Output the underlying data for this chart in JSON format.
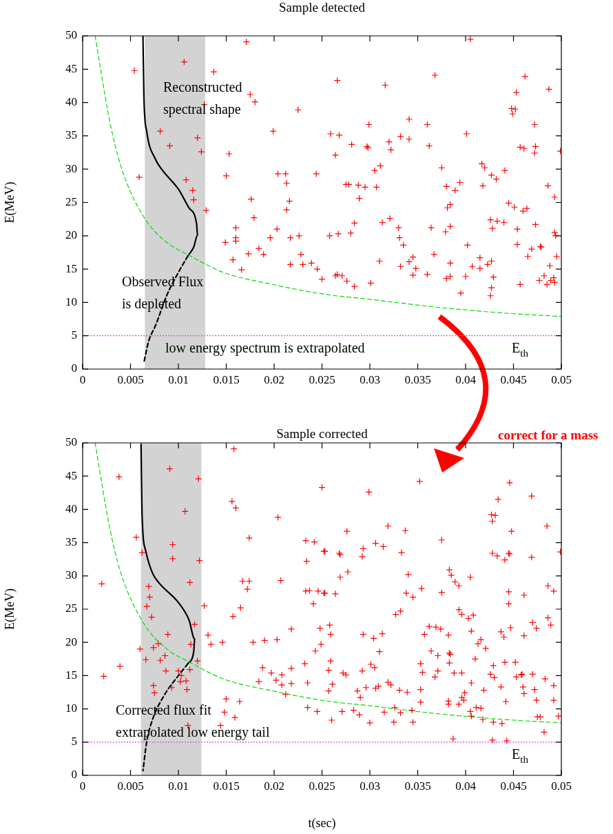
{
  "chart_data": [
    {
      "type": "scatter",
      "title": "Sample detected",
      "ylabel": "E(MeV)",
      "xlim": [
        0,
        0.05
      ],
      "ylim": [
        0,
        50
      ],
      "xticks": [
        0,
        0.005,
        0.01,
        0.015,
        0.02,
        0.025,
        0.03,
        0.035,
        0.04,
        0.045,
        0.05
      ],
      "yticks": [
        0,
        5,
        10,
        15,
        20,
        25,
        30,
        35,
        40,
        45,
        50
      ],
      "marker": "cross",
      "bands": [
        {
          "axis": "x",
          "from": 0.0065,
          "to": 0.0128,
          "color": "#d3d3d3"
        }
      ],
      "ref_lines": [
        {
          "axis": "y",
          "value": 5,
          "label": "E$_{th}$",
          "color": "#dd44dd",
          "line_style": "dotted"
        }
      ],
      "annotations": [
        "Reconstructed\nspectral shape",
        "Observed Flux\nis depleted",
        "low energy spectrum is extrapolated"
      ],
      "series": [
        {
          "type": "scatter",
          "color": "#ff0000",
          "x": [
            0.0171,
            0.0054,
            0.0106,
            0.0137,
            0.0175,
            0.018,
            0.0127,
            0.0225,
            0.0081,
            0.012,
            0.0091,
            0.0124,
            0.0153,
            0.0199,
            0.0059,
            0.015,
            0.0108,
            0.0204,
            0.0212,
            0.0244,
            0.0213,
            0.0115,
            0.0116,
            0.0129,
            0.0176,
            0.0216,
            0.0213,
            0.0179,
            0.016,
            0.0203,
            0.016,
            0.016,
            0.0149,
            0.0196,
            0.0217,
            0.0226,
            0.0184,
            0.0189,
            0.0173,
            0.0228,
            0.0157,
            0.0166,
            0.0217,
            0.023,
            0.0239,
            0.0245,
            0.025,
            0.0405,
            0.0266,
            0.0316,
            0.0368,
            0.0462,
            0.0453,
            0.0487,
            0.0448,
            0.0452,
            0.0449,
            0.0341,
            0.0299,
            0.036,
            0.0472,
            0.0259,
            0.0268,
            0.0401,
            0.0281,
            0.0297,
            0.0298,
            0.032,
            0.0322,
            0.0332,
            0.0341,
            0.0362,
            0.0457,
            0.0461,
            0.0473,
            0.0472,
            0.0499,
            0.0264,
            0.0305,
            0.0311,
            0.0375,
            0.0417,
            0.042,
            0.0427,
            0.0432,
            0.0441,
            0.0275,
            0.0278,
            0.0288,
            0.0295,
            0.0307,
            0.0289,
            0.038,
            0.0389,
            0.0394,
            0.0418,
            0.0486,
            0.0493,
            0.0381,
            0.0384,
            0.0445,
            0.0451,
            0.046,
            0.0464,
            0.0284,
            0.0313,
            0.0321,
            0.0258,
            0.0267,
            0.028,
            0.033,
            0.0331,
            0.0335,
            0.0364,
            0.0379,
            0.0384,
            0.0426,
            0.0433,
            0.044,
            0.0428,
            0.0454,
            0.0473,
            0.0493,
            0.0494,
            0.0402,
            0.0454,
            0.0469,
            0.0478,
            0.0479,
            0.0465,
            0.0495,
            0.031,
            0.0332,
            0.0341,
            0.0345,
            0.0348,
            0.0367,
            0.0384,
            0.0407,
            0.0415,
            0.0415,
            0.0423,
            0.0427,
            0.0488,
            0.0264,
            0.0266,
            0.0271,
            0.0276,
            0.0284,
            0.0301,
            0.0345,
            0.036,
            0.038,
            0.0384,
            0.04,
            0.0395,
            0.0429,
            0.0427,
            0.0426,
            0.0457,
            0.0477,
            0.0482,
            0.0485,
            0.0489,
            0.0492,
            0.0493
          ],
          "values": [
            49.1,
            44.8,
            46.1,
            44.6,
            41.2,
            40.1,
            39.7,
            38.9,
            35.7,
            34.7,
            33.5,
            32.6,
            32.3,
            35.7,
            28.8,
            29.0,
            28.4,
            29.3,
            29.3,
            29.3,
            27.9,
            26.8,
            25.4,
            23.8,
            25.5,
            25.2,
            23.9,
            22.7,
            21.2,
            21.0,
            19.7,
            19.2,
            19.0,
            19.7,
            19.7,
            20.0,
            18.1,
            17.2,
            17.3,
            17.2,
            16.4,
            14.9,
            15.7,
            15.7,
            15.9,
            15.0,
            13.5,
            49.5,
            43.3,
            42.6,
            44.1,
            43.9,
            41.5,
            42.0,
            39.1,
            39.0,
            38.3,
            37.5,
            36.7,
            36.7,
            36.7,
            35.3,
            35.1,
            35.3,
            33.7,
            33.4,
            33.2,
            34.1,
            32.9,
            34.9,
            34.5,
            33.5,
            33.3,
            33.1,
            33.4,
            32.4,
            32.7,
            32.1,
            29.8,
            30.5,
            30.2,
            30.8,
            30.2,
            29.1,
            28.5,
            29.8,
            27.7,
            27.7,
            27.6,
            27.3,
            27.3,
            25.6,
            27.4,
            26.8,
            28.0,
            27.5,
            27.5,
            25.8,
            24.2,
            24.7,
            24.9,
            24.3,
            23.7,
            24.1,
            21.9,
            22.0,
            22.6,
            20.0,
            20.3,
            20.4,
            21.2,
            19.7,
            18.6,
            21.2,
            20.6,
            21.4,
            22.4,
            22.2,
            22.0,
            21.1,
            21.0,
            21.7,
            20.5,
            20.0,
            18.6,
            18.7,
            18.0,
            18.4,
            18.3,
            16.9,
            16.9,
            16.2,
            15.4,
            16.1,
            16.8,
            15.1,
            17.2,
            15.9,
            15.4,
            16.7,
            15.1,
            15.7,
            16.2,
            15.5,
            14.0,
            14.2,
            14.0,
            13.2,
            12.4,
            12.9,
            14.1,
            14.2,
            13.6,
            13.9,
            13.9,
            11.4,
            13.8,
            12.2,
            11.0,
            12.7,
            13.3,
            14.0,
            12.7,
            13.3,
            13.7,
            13.0
          ]
        },
        {
          "type": "line",
          "color": "#00dd00",
          "line_style": "dashed",
          "marker": "none",
          "x": [
            0.0013,
            0.0028,
            0.004,
            0.0064,
            0.0088,
            0.0112,
            0.0147,
            0.0195,
            0.0254,
            0.0298,
            0.0369,
            0.0441,
            0.0499
          ],
          "values": [
            50,
            37.4,
            30.4,
            22.8,
            19.0,
            17.0,
            14.5,
            12.8,
            11.2,
            10.5,
            9.3,
            8.4,
            7.9
          ]
        },
        {
          "type": "line",
          "color": "#000000",
          "line_style": "solid",
          "marker": "none",
          "x": [
            0.0063,
            0.0064,
            0.0067,
            0.0076,
            0.0083,
            0.01,
            0.0111,
            0.0119,
            0.012,
            0.0116,
            0.011
          ],
          "values": [
            50,
            40.8,
            35.6,
            31.5,
            29.9,
            27.0,
            24.2,
            21.8,
            20.1,
            18.3,
            17.0
          ]
        },
        {
          "type": "line",
          "color": "#000000",
          "line_style": "dashed",
          "marker": "none",
          "x": [
            0.011,
            0.01,
            0.0088,
            0.0076,
            0.0069,
            0.0064
          ],
          "values": [
            17.0,
            14.5,
            11.1,
            6.5,
            4.2,
            1.0
          ]
        }
      ]
    },
    {
      "type": "scatter",
      "title": "Sample corrected",
      "xlabel": "t(sec)",
      "ylabel": "E(MeV)",
      "xlim": [
        0,
        0.05
      ],
      "ylim": [
        0,
        50
      ],
      "xticks": [
        0,
        0.005,
        0.01,
        0.015,
        0.02,
        0.025,
        0.03,
        0.035,
        0.04,
        0.045,
        0.05
      ],
      "yticks": [
        0,
        5,
        10,
        15,
        20,
        25,
        30,
        35,
        40,
        45,
        50
      ],
      "marker": "cross",
      "bands": [
        {
          "axis": "x",
          "from": 0.0061,
          "to": 0.0124,
          "color": "#d3d3d3"
        }
      ],
      "ref_lines": [
        {
          "axis": "y",
          "value": 5,
          "label": "E$_{th}$",
          "color": "#dd44dd",
          "line_style": "dotted"
        }
      ],
      "annotations": [
        "Corrected flux fit\nextrapolated low energy tail",
        "correct for a mass"
      ],
      "series": [
        {
          "type": "scatter",
          "color": "#ff0000",
          "x": [
            0.0158,
            0.0038,
            0.0091,
            0.0121,
            0.025,
            0.0156,
            0.016,
            0.0107,
            0.0204,
            0.0056,
            0.0094,
            0.0062,
            0.0094,
            0.0122,
            0.0174,
            0.0233,
            0.0242,
            0.0252,
            0.0234,
            0.002,
            0.0112,
            0.0069,
            0.0167,
            0.0174,
            0.0172,
            0.0207,
            0.0233,
            0.0237,
            0.0246,
            0.0252,
            0.007,
            0.0067,
            0.0127,
            0.0165,
            0.0072,
            0.0157,
            0.0241,
            0.0117,
            0.0218,
            0.0248,
            0.0089,
            0.0131,
            0.0134,
            0.0146,
            0.0178,
            0.019,
            0.0203,
            0.0113,
            0.0079,
            0.0074,
            0.006,
            0.0249,
            0.0243,
            0.0086,
            0.0066,
            0.0081,
            0.012,
            0.0039,
            0.0022,
            0.0087,
            0.01,
            0.0112,
            0.0103,
            0.0102,
            0.0108,
            0.0109,
            0.0074,
            0.0075,
            0.0093,
            0.0232,
            0.0218,
            0.0188,
            0.0197,
            0.0208,
            0.0202,
            0.0208,
            0.0184,
            0.0218,
            0.0235,
            0.0212,
            0.015,
            0.0164,
            0.0148,
            0.0159,
            0.0235,
            0.0245,
            0.011,
            0.0144,
            0.0393,
            0.0352,
            0.0299,
            0.0446,
            0.0469,
            0.0434,
            0.0427,
            0.0431,
            0.0428,
            0.0319,
            0.0337,
            0.0276,
            0.0448,
            0.0485,
            0.0375,
            0.0253,
            0.0268,
            0.0269,
            0.0293,
            0.0292,
            0.0306,
            0.0314,
            0.0333,
            0.0428,
            0.0433,
            0.0445,
            0.0446,
            0.0441,
            0.0469,
            0.0499,
            0.0269,
            0.0277,
            0.034,
            0.0383,
            0.0385,
            0.0389,
            0.0393,
            0.0405,
            0.0253,
            0.0264,
            0.0338,
            0.0345,
            0.0354,
            0.0375,
            0.0445,
            0.0445,
            0.0461,
            0.0486,
            0.0492,
            0.0327,
            0.0332,
            0.0393,
            0.0396,
            0.0403,
            0.0408,
            0.0258,
            0.0259,
            0.0293,
            0.0304,
            0.0313,
            0.0357,
            0.0362,
            0.0369,
            0.0374,
            0.0382,
            0.0406,
            0.0437,
            0.044,
            0.0447,
            0.0461,
            0.047,
            0.0474,
            0.0486,
            0.0489,
            0.0413,
            0.0416,
            0.0421,
            0.031,
            0.0364,
            0.0371,
            0.0383,
            0.0384,
            0.041,
            0.0259,
            0.0257,
            0.0301,
            0.0305,
            0.0353,
            0.0355,
            0.0371,
            0.0383,
            0.0388,
            0.0396,
            0.0429,
            0.0441,
            0.0452,
            0.0272,
            0.0275,
            0.0292,
            0.0368,
            0.0426,
            0.043,
            0.0453,
            0.0458,
            0.0459,
            0.047,
            0.0483,
            0.0261,
            0.0257,
            0.0287,
            0.029,
            0.0296,
            0.0306,
            0.0309,
            0.0319,
            0.0322,
            0.0331,
            0.0339,
            0.0353,
            0.0353,
            0.0382,
            0.0382,
            0.0393,
            0.0396,
            0.0398,
            0.0399,
            0.0406,
            0.0419,
            0.0437,
            0.0442,
            0.046,
            0.0461,
            0.0472,
            0.0474,
            0.0492,
            0.0492,
            0.0271,
            0.0283,
            0.0289,
            0.026,
            0.03,
            0.0315,
            0.0326,
            0.0332,
            0.0344,
            0.0325,
            0.0345,
            0.0405,
            0.0406,
            0.0411,
            0.0416,
            0.0418,
            0.0429,
            0.0438,
            0.0475,
            0.0478,
            0.0497,
            0.0482,
            0.0387,
            0.0428,
            0.0443
          ],
          "values": [
            49.1,
            44.9,
            46.1,
            44.6,
            43.3,
            41.2,
            40.2,
            39.7,
            38.8,
            35.8,
            34.7,
            33.5,
            32.6,
            32.3,
            35.7,
            35.3,
            35.1,
            33.7,
            32.2,
            28.8,
            29.0,
            28.4,
            29.2,
            29.2,
            28.0,
            29.3,
            27.7,
            27.8,
            27.7,
            27.4,
            26.8,
            25.4,
            25.5,
            25.2,
            23.8,
            23.9,
            25.8,
            22.7,
            22.0,
            22.1,
            21.2,
            21.1,
            19.7,
            20.0,
            20.0,
            20.3,
            20.4,
            19.7,
            19.8,
            19.2,
            19.0,
            19.7,
            18.7,
            18.0,
            17.4,
            17.3,
            17.2,
            16.4,
            14.9,
            15.7,
            15.7,
            15.9,
            15.0,
            14.1,
            14.2,
            12.9,
            13.5,
            12.4,
            13.2,
            16.8,
            16.1,
            16.2,
            15.4,
            15.1,
            14.3,
            13.6,
            14.1,
            13.8,
            13.9,
            12.2,
            11.5,
            11.1,
            9.5,
            8.7,
            10.2,
            9.6,
            7.5,
            7.5,
            49.5,
            44.2,
            42.6,
            44.0,
            42.0,
            41.5,
            39.2,
            39.1,
            38.2,
            37.5,
            36.8,
            36.7,
            36.7,
            37.5,
            35.4,
            33.7,
            33.4,
            33.2,
            34.1,
            32.9,
            34.9,
            34.4,
            33.5,
            33.4,
            33.0,
            33.4,
            33.3,
            32.4,
            32.8,
            33.6,
            29.8,
            30.6,
            30.2,
            30.9,
            30.1,
            29.1,
            28.5,
            29.8,
            27.4,
            27.3,
            27.4,
            26.8,
            28.1,
            27.5,
            27.6,
            25.8,
            27.1,
            28.5,
            27.7,
            24.2,
            24.7,
            24.9,
            24.2,
            23.6,
            24.1,
            22.6,
            21.2,
            21.2,
            20.6,
            21.3,
            21.2,
            22.4,
            22.3,
            22.0,
            21.1,
            21.7,
            21.6,
            20.8,
            22.2,
            21.0,
            23.0,
            22.1,
            23.7,
            22.6,
            19.8,
            20.4,
            19.1,
            18.6,
            18.7,
            18.0,
            18.4,
            18.2,
            17.5,
            17.2,
            15.8,
            16.7,
            16.2,
            16.8,
            15.5,
            15.7,
            16.9,
            15.4,
            15.4,
            16.5,
            17.0,
            17.0,
            15.4,
            15.1,
            15.7,
            14.8,
            15.2,
            14.7,
            14.8,
            15.1,
            15.2,
            15.2,
            14.5,
            13.7,
            12.7,
            12.7,
            11.7,
            13.2,
            13.1,
            13.4,
            14.0,
            13.6,
            12.8,
            12.5,
            12.9,
            11.0,
            11.2,
            10.7,
            10.7,
            11.7,
            11.3,
            12.4,
            13.9,
            12.8,
            13.3,
            11.1,
            13.3,
            12.3,
            12.9,
            11.3,
            13.5,
            11.3,
            9.6,
            9.8,
            9.1,
            8.3,
            7.9,
            9.5,
            10.2,
            9.4,
            9.8,
            8.0,
            8.0,
            9.6,
            8.9,
            10.2,
            10.1,
            8.4,
            8.0,
            7.8,
            8.8,
            8.8,
            8.9,
            6.5,
            5.5,
            5.3,
            5.2
          ]
        },
        {
          "type": "line",
          "color": "#00dd00",
          "line_style": "dashed",
          "marker": "none",
          "x": [
            0.0013,
            0.0028,
            0.004,
            0.0064,
            0.0088,
            0.0112,
            0.0147,
            0.0195,
            0.0254,
            0.0298,
            0.0369,
            0.0441,
            0.0499
          ],
          "values": [
            50,
            37.4,
            30.4,
            22.8,
            19.0,
            17.0,
            14.5,
            12.8,
            11.2,
            10.5,
            9.3,
            8.4,
            7.9
          ]
        },
        {
          "type": "line",
          "color": "#000000",
          "line_style": "solid",
          "marker": "none",
          "x": [
            0.0061,
            0.0062,
            0.0066,
            0.0073,
            0.008,
            0.01,
            0.0111,
            0.0117,
            0.0116,
            0.011
          ],
          "values": [
            49.8,
            39.5,
            33.7,
            30.4,
            28.9,
            26.0,
            23.4,
            20.5,
            18.6,
            16.8
          ]
        },
        {
          "type": "line",
          "color": "#000000",
          "line_style": "dashed",
          "marker": "none",
          "x": [
            0.011,
            0.01,
            0.0085,
            0.0073,
            0.0067,
            0.0063
          ],
          "values": [
            16.8,
            15.0,
            12.0,
            8.4,
            5.1,
            0.7
          ]
        }
      ]
    }
  ]
}
